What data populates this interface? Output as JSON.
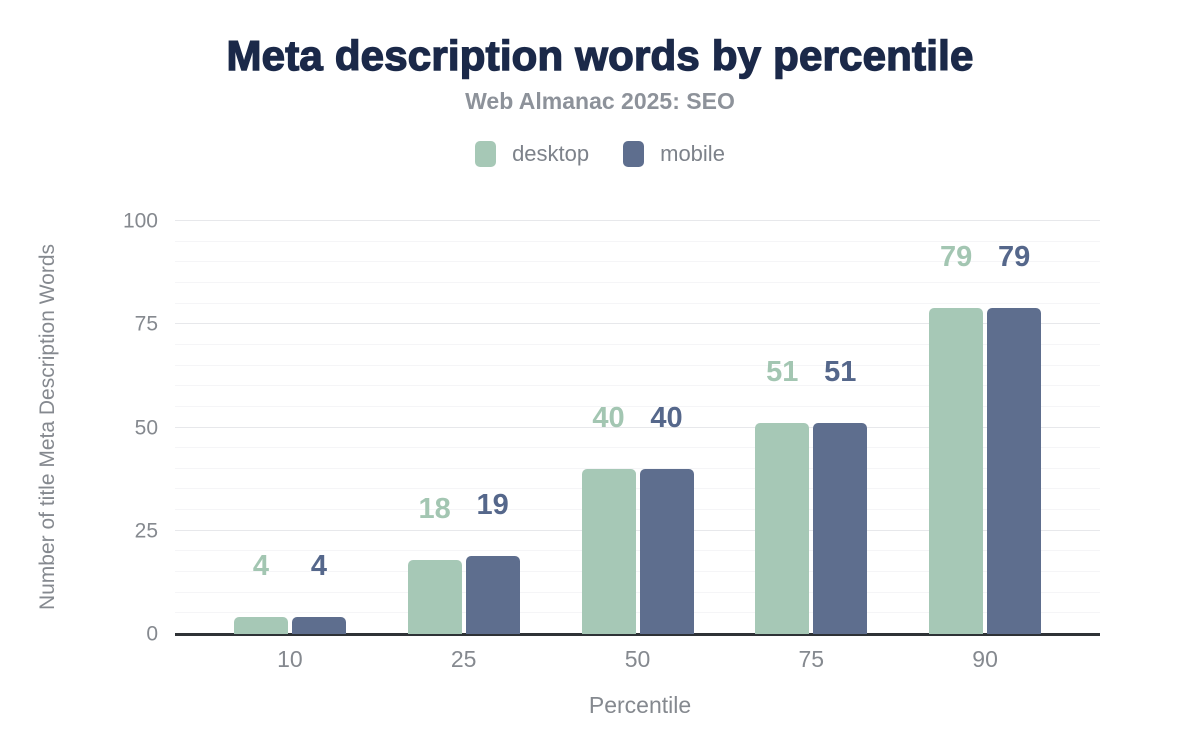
{
  "chart_data": {
    "type": "bar",
    "title": "Meta description words by percentile",
    "subtitle": "Web Almanac 2025: SEO",
    "categories": [
      "10",
      "25",
      "50",
      "75",
      "90"
    ],
    "series": [
      {
        "name": "desktop",
        "color": "#a6c8b6",
        "label_color": "#a3c6b2",
        "values": [
          4,
          18,
          40,
          51,
          79
        ]
      },
      {
        "name": "mobile",
        "color": "#5e6e8e",
        "label_color": "#55678b",
        "values": [
          4,
          19,
          40,
          51,
          79
        ]
      }
    ],
    "xlabel": "Percentile",
    "ylabel": "Number of title Meta Description Words",
    "ylim": [
      0,
      100
    ],
    "yticks": [
      0,
      25,
      50,
      75,
      100
    ],
    "minor_gridline_step": 5,
    "grid": "horizontal",
    "legend_position": "top",
    "bar_value_labels": true
  },
  "theme": {
    "background": "#ffffff",
    "title_color": "#1b2949",
    "muted_text_color": "#85898f",
    "subtitle_color": "#8d929a",
    "legend_text_color": "#7d828a",
    "axis_line_color": "#2e3236",
    "grid_major_color": "#e7e8eb",
    "grid_minor_color": "#f5f5f7"
  }
}
